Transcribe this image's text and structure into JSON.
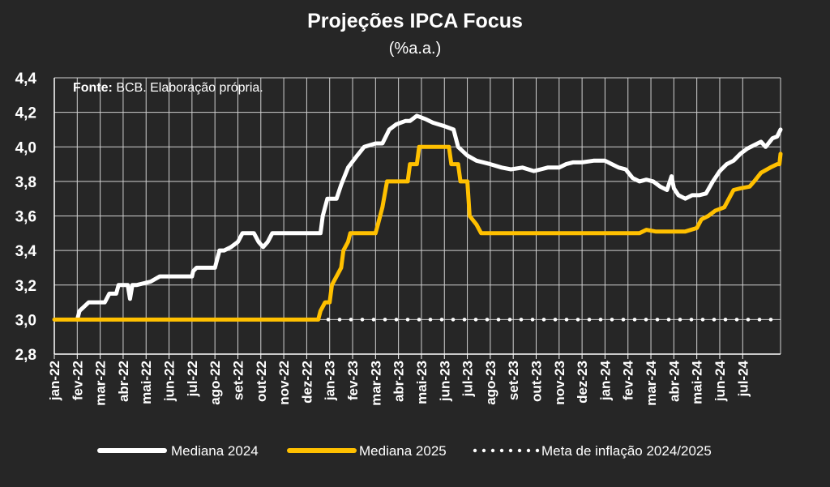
{
  "chart_data": {
    "type": "line",
    "title": "Projeções IPCA Focus",
    "subtitle": "(%a.a.)",
    "source_label": "Fonte:",
    "source_text": " BCB. Elaboração própria.",
    "ylim": [
      2.8,
      4.4
    ],
    "y_ticks": [
      "2,8",
      "3,0",
      "3,2",
      "3,4",
      "3,6",
      "3,8",
      "4,0",
      "4,2",
      "4,4"
    ],
    "x_ticks": [
      "jan-22",
      "fev-22",
      "mar-22",
      "abr-22",
      "mai-22",
      "jun-22",
      "jul-22",
      "ago-22",
      "set-22",
      "out-22",
      "nov-22",
      "dez-22",
      "jan-23",
      "fev-23",
      "mar-23",
      "abr-23",
      "mai-23",
      "jun-23",
      "jul-23",
      "ago-23",
      "set-23",
      "out-23",
      "nov-23",
      "dez-23",
      "jan-24",
      "fev-24",
      "mar-24",
      "abr-24",
      "mai-24",
      "jun-24",
      "jul-24"
    ],
    "grid": true,
    "legend_position": "bottom",
    "series": [
      {
        "name": "Mediana 2024",
        "color": "#ffffff",
        "style": "solid",
        "points": [
          [
            1.0,
            3.0
          ],
          [
            1.1,
            3.05
          ],
          [
            1.5,
            3.1
          ],
          [
            2.2,
            3.1
          ],
          [
            2.4,
            3.15
          ],
          [
            2.7,
            3.15
          ],
          [
            2.8,
            3.2
          ],
          [
            3.2,
            3.2
          ],
          [
            3.3,
            3.12
          ],
          [
            3.4,
            3.2
          ],
          [
            3.6,
            3.2
          ],
          [
            4.2,
            3.22
          ],
          [
            4.6,
            3.25
          ],
          [
            5.0,
            3.25
          ],
          [
            6.0,
            3.25
          ],
          [
            6.05,
            3.28
          ],
          [
            6.2,
            3.3
          ],
          [
            7.0,
            3.3
          ],
          [
            7.2,
            3.4
          ],
          [
            7.4,
            3.4
          ],
          [
            7.7,
            3.42
          ],
          [
            8.0,
            3.45
          ],
          [
            8.2,
            3.5
          ],
          [
            8.7,
            3.5
          ],
          [
            8.9,
            3.45
          ],
          [
            9.1,
            3.42
          ],
          [
            9.3,
            3.45
          ],
          [
            9.5,
            3.5
          ],
          [
            11.0,
            3.5
          ],
          [
            11.6,
            3.5
          ],
          [
            11.7,
            3.6
          ],
          [
            11.9,
            3.7
          ],
          [
            12.3,
            3.7
          ],
          [
            12.5,
            3.78
          ],
          [
            12.8,
            3.88
          ],
          [
            13.2,
            3.95
          ],
          [
            13.5,
            4.0
          ],
          [
            14.0,
            4.02
          ],
          [
            14.3,
            4.02
          ],
          [
            14.6,
            4.1
          ],
          [
            14.9,
            4.13
          ],
          [
            15.3,
            4.15
          ],
          [
            15.5,
            4.15
          ],
          [
            15.8,
            4.18
          ],
          [
            16.2,
            4.16
          ],
          [
            16.5,
            4.14
          ],
          [
            17.0,
            4.12
          ],
          [
            17.4,
            4.1
          ],
          [
            17.6,
            4.0
          ],
          [
            18.0,
            3.95
          ],
          [
            18.4,
            3.92
          ],
          [
            19.0,
            3.9
          ],
          [
            19.5,
            3.88
          ],
          [
            19.9,
            3.87
          ],
          [
            20.4,
            3.88
          ],
          [
            20.9,
            3.86
          ],
          [
            21.2,
            3.87
          ],
          [
            21.5,
            3.88
          ],
          [
            22.0,
            3.88
          ],
          [
            22.3,
            3.9
          ],
          [
            22.6,
            3.91
          ],
          [
            23.0,
            3.91
          ],
          [
            23.5,
            3.92
          ],
          [
            24.0,
            3.92
          ],
          [
            24.3,
            3.9
          ],
          [
            24.6,
            3.88
          ],
          [
            24.9,
            3.87
          ],
          [
            25.2,
            3.82
          ],
          [
            25.5,
            3.8
          ],
          [
            25.8,
            3.81
          ],
          [
            26.1,
            3.8
          ],
          [
            26.4,
            3.77
          ],
          [
            26.7,
            3.75
          ],
          [
            26.9,
            3.83
          ],
          [
            27.0,
            3.76
          ],
          [
            27.2,
            3.72
          ],
          [
            27.5,
            3.7
          ],
          [
            27.8,
            3.72
          ],
          [
            28.1,
            3.72
          ],
          [
            28.4,
            3.73
          ],
          [
            28.7,
            3.8
          ],
          [
            29.0,
            3.86
          ],
          [
            29.3,
            3.9
          ],
          [
            29.6,
            3.92
          ],
          [
            29.9,
            3.96
          ],
          [
            30.2,
            3.99
          ],
          [
            30.5,
            4.01
          ],
          [
            30.8,
            4.03
          ],
          [
            31.0,
            4.0
          ],
          [
            31.3,
            4.05
          ],
          [
            31.5,
            4.06
          ],
          [
            31.65,
            4.1
          ]
        ]
      },
      {
        "name": "Mediana 2025",
        "color": "#ffc000",
        "style": "solid",
        "points": [
          [
            0.0,
            3.0
          ],
          [
            11.0,
            3.0
          ],
          [
            11.5,
            3.0
          ],
          [
            11.6,
            3.05
          ],
          [
            11.8,
            3.1
          ],
          [
            12.0,
            3.1
          ],
          [
            12.1,
            3.2
          ],
          [
            12.3,
            3.25
          ],
          [
            12.5,
            3.3
          ],
          [
            12.6,
            3.4
          ],
          [
            12.8,
            3.45
          ],
          [
            12.9,
            3.5
          ],
          [
            13.2,
            3.5
          ],
          [
            14.0,
            3.5
          ],
          [
            14.1,
            3.55
          ],
          [
            14.3,
            3.65
          ],
          [
            14.5,
            3.8
          ],
          [
            15.4,
            3.8
          ],
          [
            15.5,
            3.9
          ],
          [
            15.8,
            3.9
          ],
          [
            15.9,
            4.0
          ],
          [
            16.5,
            4.0
          ],
          [
            17.2,
            4.0
          ],
          [
            17.3,
            3.9
          ],
          [
            17.6,
            3.9
          ],
          [
            17.7,
            3.8
          ],
          [
            18.0,
            3.8
          ],
          [
            18.1,
            3.6
          ],
          [
            18.4,
            3.55
          ],
          [
            18.6,
            3.5
          ],
          [
            25.0,
            3.5
          ],
          [
            25.5,
            3.5
          ],
          [
            25.8,
            3.52
          ],
          [
            26.2,
            3.51
          ],
          [
            27.0,
            3.51
          ],
          [
            27.5,
            3.51
          ],
          [
            28.0,
            3.53
          ],
          [
            28.2,
            3.58
          ],
          [
            28.5,
            3.6
          ],
          [
            28.8,
            3.63
          ],
          [
            29.2,
            3.65
          ],
          [
            29.4,
            3.7
          ],
          [
            29.6,
            3.75
          ],
          [
            29.9,
            3.76
          ],
          [
            30.3,
            3.77
          ],
          [
            30.5,
            3.8
          ],
          [
            30.8,
            3.85
          ],
          [
            31.2,
            3.88
          ],
          [
            31.5,
            3.9
          ],
          [
            31.6,
            3.9
          ],
          [
            31.65,
            3.96
          ]
        ]
      },
      {
        "name": "Meta de inflação 2024/2025",
        "color": "#ffffff",
        "style": "dotted",
        "points": [
          [
            0.0,
            3.0
          ],
          [
            31.65,
            3.0
          ]
        ]
      }
    ]
  }
}
